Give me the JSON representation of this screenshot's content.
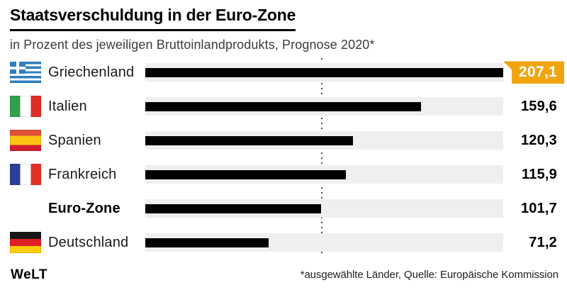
{
  "header": {
    "title": "Staatsverschuldung in der Euro-Zone",
    "subtitle": "in Prozent des jeweiligen Bruttoinlandprodukts, Prognose 2020*"
  },
  "footer": {
    "brand": "WeLT",
    "source": "*ausgewählte Länder, Quelle: Europäische Kommission"
  },
  "colors": {
    "bar": "#000000",
    "track": "#efefef",
    "highlight_badge": "#f0a50f",
    "reference_line": "#4a4a4a"
  },
  "chart_data": {
    "type": "bar",
    "orientation": "horizontal",
    "title": "Staatsverschuldung in der Euro-Zone",
    "subtitle": "in Prozent des jeweiligen Bruttoinlandprodukts, Prognose 2020*",
    "unit": "Prozent des BIP",
    "categories": [
      "Griechenland",
      "Italien",
      "Spanien",
      "Frankreich",
      "Euro-Zone",
      "Deutschland"
    ],
    "values": [
      207.1,
      159.6,
      120.3,
      115.9,
      101.7,
      71.2
    ],
    "value_labels": [
      "207,1",
      "159,6",
      "120,3",
      "115,9",
      "101,7",
      "71,2"
    ],
    "xlim": [
      0,
      207.1
    ],
    "grid": false,
    "reference_line": {
      "value": 101.7,
      "style": "dotted",
      "meaning": "Euro-Zone level"
    },
    "highlight_index": 0
  },
  "rows": [
    {
      "label": "Griechenland",
      "flag": "greece",
      "flag_icon": "greece-flag-icon",
      "value": 207.1,
      "value_display": "207,1",
      "highlighted": true,
      "bold_label": false
    },
    {
      "label": "Italien",
      "flag": "italy",
      "flag_icon": "italy-flag-icon",
      "value": 159.6,
      "value_display": "159,6",
      "highlighted": false,
      "bold_label": false
    },
    {
      "label": "Spanien",
      "flag": "spain",
      "flag_icon": "spain-flag-icon",
      "value": 120.3,
      "value_display": "120,3",
      "highlighted": false,
      "bold_label": false
    },
    {
      "label": "Frankreich",
      "flag": "france",
      "flag_icon": "france-flag-icon",
      "value": 115.9,
      "value_display": "115,9",
      "highlighted": false,
      "bold_label": false
    },
    {
      "label": "Euro-Zone",
      "flag": null,
      "flag_icon": null,
      "value": 101.7,
      "value_display": "101,7",
      "highlighted": false,
      "bold_label": true
    },
    {
      "label": "Deutschland",
      "flag": "germany",
      "flag_icon": "germany-flag-icon",
      "value": 71.2,
      "value_display": "71,2",
      "highlighted": false,
      "bold_label": false
    }
  ]
}
